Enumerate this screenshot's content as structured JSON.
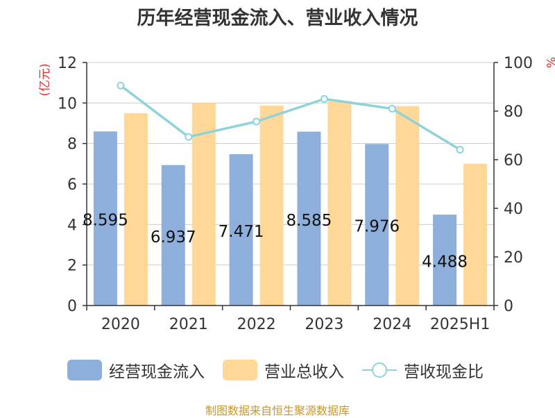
{
  "title": "历年经营现金流入、营业收入情况",
  "footer": "制图数据来自恒生聚源数据库",
  "colors": {
    "cash_inflow": "#8eaedb",
    "revenue": "#ffd898",
    "ratio": "#8ed3da",
    "left_axis_label": "#e03030",
    "right_axis_label": "#e03030",
    "text": "#333333",
    "grid": "#cccccc"
  },
  "chart_data": {
    "type": "bar",
    "title": "历年经营现金流入、营业收入情况",
    "categories": [
      "2020",
      "2021",
      "2022",
      "2023",
      "2024",
      "2025H1"
    ],
    "series": [
      {
        "name": "经营现金流入",
        "type": "bar",
        "axis": "left",
        "values": [
          8.595,
          6.937,
          7.471,
          8.585,
          7.976,
          4.488
        ]
      },
      {
        "name": "营业总收入",
        "type": "bar",
        "axis": "left",
        "values": [
          9.5,
          10.0,
          9.87,
          10.1,
          9.85,
          7.0
        ]
      },
      {
        "name": "营收现金比",
        "type": "line",
        "axis": "right",
        "values": [
          90.5,
          69.4,
          75.7,
          85.0,
          81.0,
          64.1
        ]
      }
    ],
    "data_labels": [
      "8.595",
      "6.937",
      "7.471",
      "8.585",
      "7.976",
      "4.488"
    ],
    "left_axis": {
      "label": "(亿元)",
      "min": 0,
      "max": 12,
      "ticks": [
        "0",
        "2",
        "4",
        "6",
        "8",
        "10",
        "12"
      ]
    },
    "right_axis": {
      "label": "%",
      "min": 0,
      "max": 100,
      "ticks": [
        "0",
        "20",
        "40",
        "60",
        "80",
        "100"
      ]
    },
    "grid": true,
    "legend_position": "bottom"
  }
}
